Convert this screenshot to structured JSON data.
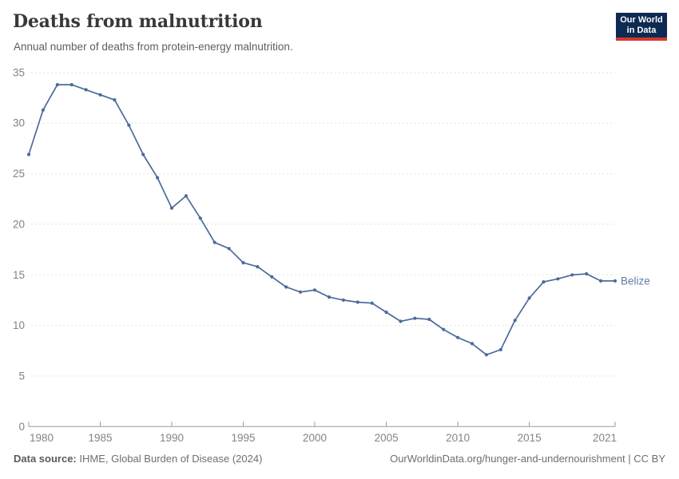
{
  "header": {
    "title": "Deaths from malnutrition",
    "subtitle": "Annual number of deaths from protein-energy malnutrition."
  },
  "logo": {
    "line1": "Our World",
    "line2": "in Data",
    "bg_color": "#0c2b52",
    "bar_color": "#d4382d",
    "text_color": "#ffffff"
  },
  "chart_data": {
    "type": "line",
    "title": "Deaths from malnutrition",
    "subtitle": "Annual number of deaths from protein-energy malnutrition.",
    "entity_label": "Belize",
    "x_years": [
      1980,
      1981,
      1982,
      1983,
      1984,
      1985,
      1986,
      1987,
      1988,
      1989,
      1990,
      1991,
      1992,
      1993,
      1994,
      1995,
      1996,
      1997,
      1998,
      1999,
      2000,
      2001,
      2002,
      2003,
      2004,
      2005,
      2006,
      2007,
      2008,
      2009,
      2010,
      2011,
      2012,
      2013,
      2014,
      2015,
      2016,
      2017,
      2018,
      2019,
      2020,
      2021
    ],
    "series": [
      {
        "name": "Belize",
        "values": [
          26.9,
          31.3,
          33.8,
          33.8,
          33.3,
          32.8,
          32.3,
          29.8,
          26.9,
          24.6,
          21.6,
          22.8,
          20.6,
          18.2,
          17.6,
          16.2,
          15.8,
          14.8,
          13.8,
          13.3,
          13.5,
          12.8,
          12.5,
          12.3,
          12.2,
          11.3,
          10.4,
          10.7,
          10.6,
          9.6,
          8.8,
          8.2,
          7.1,
          7.6,
          10.5,
          12.7,
          14.3,
          14.6,
          15.0,
          15.1,
          14.4,
          14.4
        ]
      }
    ],
    "ylim": [
      0,
      35
    ],
    "yticks": [
      0,
      5,
      10,
      15,
      20,
      25,
      30,
      35
    ],
    "xticks": [
      1980,
      1985,
      1990,
      1995,
      2000,
      2005,
      2010,
      2015,
      2021
    ],
    "grid": true,
    "legend_position": "end-of-line",
    "colors": {
      "line": "#4c6a9c",
      "marker": "#4c6a9c",
      "entity_label": "#5d7da9",
      "grid": "#e0e0e0",
      "axis": "#9a9a9a",
      "tick_label": "#838383"
    }
  },
  "footer": {
    "source_label": "Data source:",
    "source_value": "IHME, Global Burden of Disease (2024)",
    "link_text": "OurWorldinData.org/hunger-and-undernourishment | CC BY"
  }
}
